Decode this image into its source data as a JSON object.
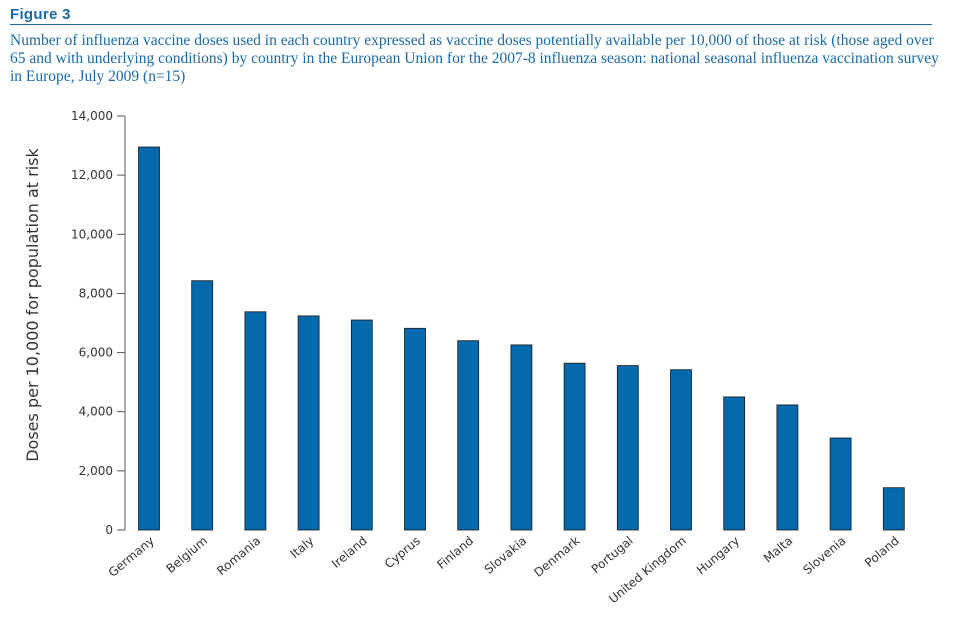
{
  "figure": {
    "label": "Figure 3",
    "caption": "Number of influenza vaccine doses used in each country expressed as vaccine doses potentially available per 10,000 of those at risk (those aged over 65 and with underlying conditions) by country in the European Union for the 2007-8 influenza season: national seasonal influenza vaccination survey in Europe, July 2009 (n=15)"
  },
  "chart_data": {
    "type": "bar",
    "categories": [
      "Germany",
      "Belgium",
      "Romania",
      "Italy",
      "Ireland",
      "Cyprus",
      "Finland",
      "Slovakia",
      "Denmark",
      "Portugal",
      "United Kingdom",
      "Hungary",
      "Malta",
      "Slovenia",
      "Poland"
    ],
    "values": [
      12950,
      8430,
      7380,
      7240,
      7100,
      6820,
      6400,
      6260,
      5640,
      5560,
      5420,
      4500,
      4230,
      3110,
      1430
    ],
    "title": "",
    "xlabel": "",
    "ylabel": "Doses per 10,000 for population at risk",
    "ylim": [
      0,
      14000
    ],
    "yticks": [
      0,
      2000,
      4000,
      6000,
      8000,
      10000,
      12000,
      14000
    ],
    "ytick_labels": [
      "0",
      "2,000",
      "4,000",
      "6,000",
      "8,000",
      "10,000",
      "12,000",
      "14,000"
    ],
    "bar_color": "#0569ad",
    "bar_edge_color": "#1a1a1a",
    "grid": false
  }
}
